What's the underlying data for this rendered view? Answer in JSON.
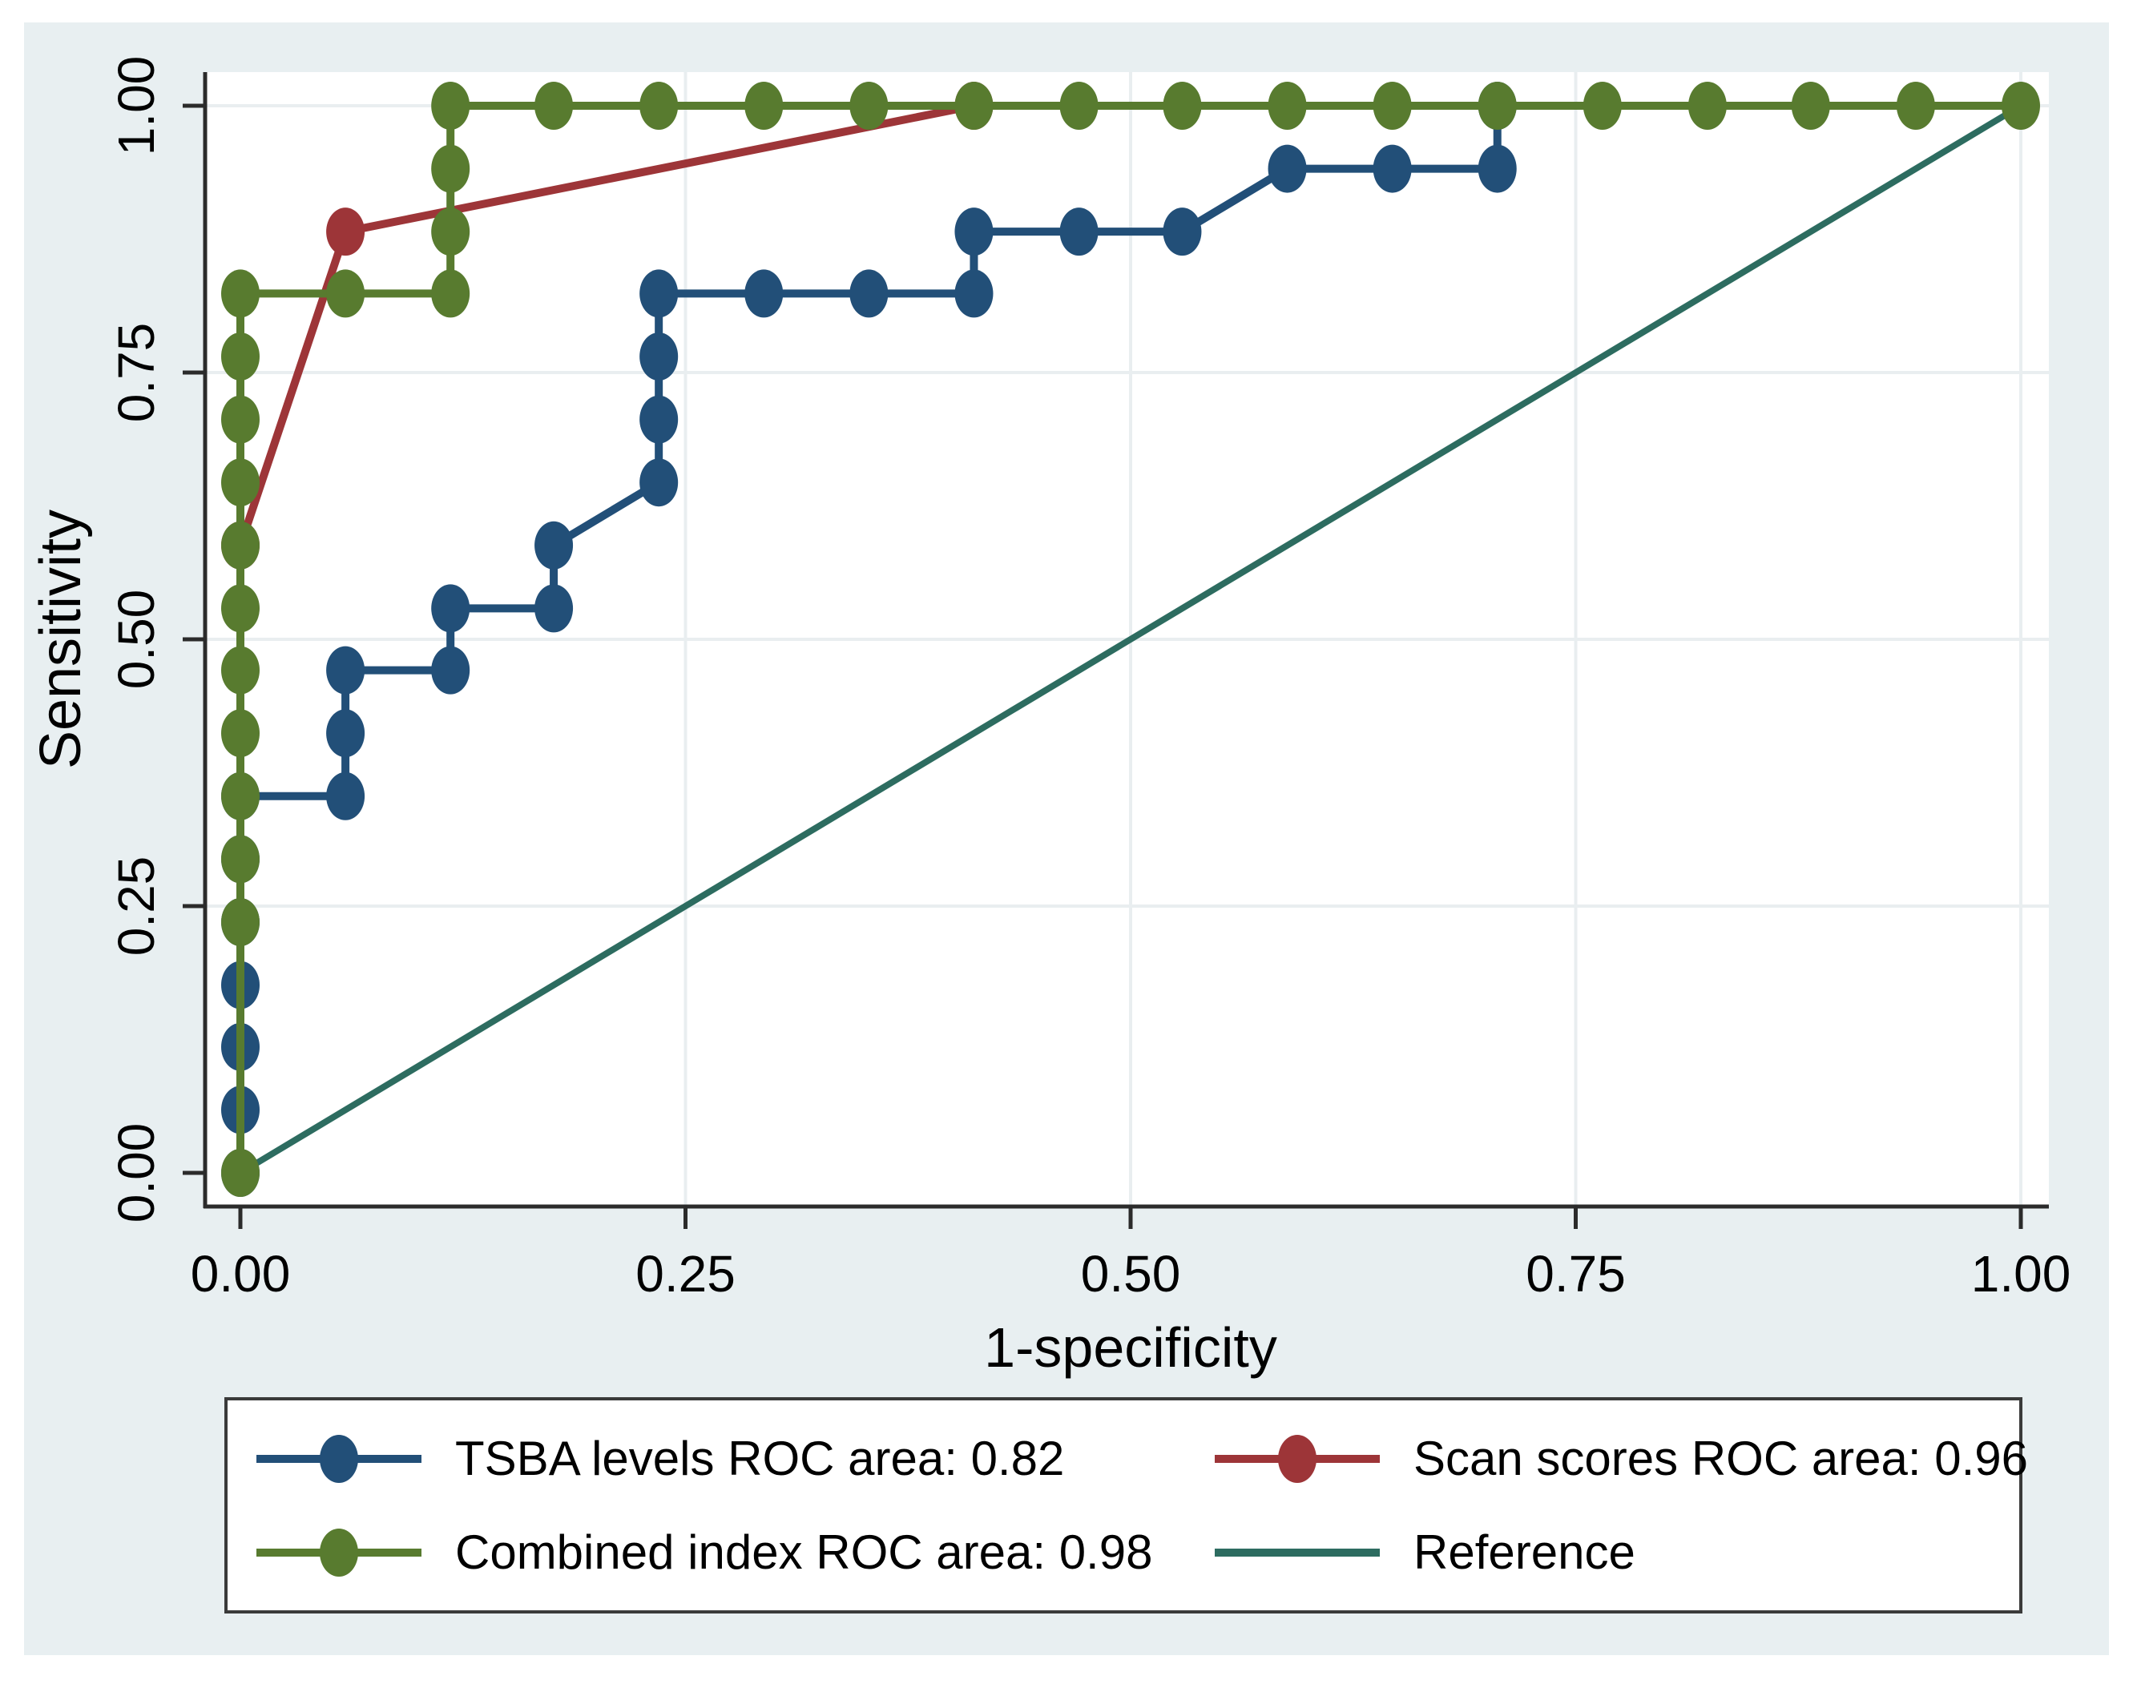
{
  "figure": {
    "background_color": "#e8eff1",
    "plot_background_color": "#ffffff",
    "grid_color": "#e9eef0",
    "axis_color": "#2b2b2b",
    "text_color": "#000000",
    "legend_border_color": "#3a3a3a"
  },
  "chart_data": {
    "type": "line",
    "subtype": "roc-step-curves",
    "title": "",
    "xlabel": "1-specificity",
    "ylabel": "Sensitivity",
    "xlim": [
      0,
      1
    ],
    "ylim": [
      0,
      1
    ],
    "grid": true,
    "x_ticks": {
      "values": [
        0,
        0.25,
        0.5,
        0.75,
        1
      ],
      "labels": [
        "0.00",
        "0.25",
        "0.50",
        "0.75",
        "1.00"
      ]
    },
    "y_ticks": {
      "values": [
        0,
        0.25,
        0.5,
        0.75,
        1
      ],
      "labels": [
        "0.00",
        "0.25",
        "0.50",
        "0.75",
        "1.00"
      ]
    },
    "series": [
      {
        "name": "Reference",
        "roc_area": null,
        "color": "#2d6c60",
        "line_width": 8,
        "points": [
          [
            0,
            0
          ],
          [
            1,
            1
          ]
        ],
        "marker_points": []
      },
      {
        "name": "TSBA levels",
        "roc_area": 0.82,
        "color": "#224f78",
        "line_width": 10,
        "points": [
          [
            0,
            0
          ],
          [
            0,
            0.059
          ],
          [
            0,
            0.118
          ],
          [
            0,
            0.176
          ],
          [
            0,
            0.235
          ],
          [
            0,
            0.294
          ],
          [
            0,
            0.353
          ],
          [
            0.059,
            0.353
          ],
          [
            0.059,
            0.412
          ],
          [
            0.059,
            0.471
          ],
          [
            0.118,
            0.471
          ],
          [
            0.118,
            0.529
          ],
          [
            0.176,
            0.529
          ],
          [
            0.176,
            0.588
          ],
          [
            0.235,
            0.647
          ],
          [
            0.235,
            0.706
          ],
          [
            0.235,
            0.765
          ],
          [
            0.235,
            0.824
          ],
          [
            0.294,
            0.824
          ],
          [
            0.353,
            0.824
          ],
          [
            0.412,
            0.824
          ],
          [
            0.412,
            0.882
          ],
          [
            0.471,
            0.882
          ],
          [
            0.529,
            0.882
          ],
          [
            0.588,
            0.941
          ],
          [
            0.647,
            0.941
          ],
          [
            0.706,
            0.941
          ],
          [
            0.706,
            1
          ],
          [
            1,
            1
          ]
        ],
        "marker_points": [
          [
            0,
            0
          ],
          [
            0,
            0.059
          ],
          [
            0,
            0.118
          ],
          [
            0,
            0.176
          ],
          [
            0,
            0.235
          ],
          [
            0,
            0.294
          ],
          [
            0,
            0.353
          ],
          [
            0.059,
            0.353
          ],
          [
            0.059,
            0.412
          ],
          [
            0.059,
            0.471
          ],
          [
            0.118,
            0.471
          ],
          [
            0.118,
            0.529
          ],
          [
            0.176,
            0.529
          ],
          [
            0.176,
            0.588
          ],
          [
            0.235,
            0.647
          ],
          [
            0.235,
            0.706
          ],
          [
            0.235,
            0.765
          ],
          [
            0.235,
            0.824
          ],
          [
            0.294,
            0.824
          ],
          [
            0.353,
            0.824
          ],
          [
            0.412,
            0.824
          ],
          [
            0.412,
            0.882
          ],
          [
            0.471,
            0.882
          ],
          [
            0.529,
            0.882
          ],
          [
            0.588,
            0.941
          ],
          [
            0.647,
            0.941
          ],
          [
            0.706,
            0.941
          ],
          [
            0.706,
            1
          ]
        ]
      },
      {
        "name": "Scan scores",
        "roc_area": 0.96,
        "color": "#9d3538",
        "line_width": 10,
        "points": [
          [
            0,
            0
          ],
          [
            0,
            0.588
          ],
          [
            0.059,
            0.882
          ],
          [
            0.412,
            1
          ],
          [
            1,
            1
          ]
        ],
        "marker_points": [
          [
            0,
            0.588
          ],
          [
            0.059,
            0.882
          ],
          [
            0.412,
            1
          ]
        ]
      },
      {
        "name": "Combined index",
        "roc_area": 0.98,
        "color": "#587b2f",
        "line_width": 10,
        "points": [
          [
            0,
            0
          ],
          [
            0,
            0.235
          ],
          [
            0,
            0.294
          ],
          [
            0,
            0.353
          ],
          [
            0,
            0.412
          ],
          [
            0,
            0.471
          ],
          [
            0,
            0.529
          ],
          [
            0,
            0.588
          ],
          [
            0,
            0.647
          ],
          [
            0,
            0.706
          ],
          [
            0,
            0.765
          ],
          [
            0,
            0.824
          ],
          [
            0.059,
            0.824
          ],
          [
            0.118,
            0.824
          ],
          [
            0.118,
            0.882
          ],
          [
            0.118,
            0.941
          ],
          [
            0.118,
            1
          ],
          [
            0.176,
            1
          ],
          [
            0.235,
            1
          ],
          [
            0.294,
            1
          ],
          [
            0.353,
            1
          ],
          [
            0.412,
            1
          ],
          [
            0.471,
            1
          ],
          [
            0.529,
            1
          ],
          [
            0.588,
            1
          ],
          [
            0.647,
            1
          ],
          [
            0.706,
            1
          ],
          [
            0.765,
            1
          ],
          [
            0.824,
            1
          ],
          [
            0.882,
            1
          ],
          [
            0.941,
            1
          ],
          [
            1,
            1
          ]
        ],
        "marker_points": [
          [
            0,
            0
          ],
          [
            0,
            0.235
          ],
          [
            0,
            0.294
          ],
          [
            0,
            0.353
          ],
          [
            0,
            0.412
          ],
          [
            0,
            0.471
          ],
          [
            0,
            0.529
          ],
          [
            0,
            0.588
          ],
          [
            0,
            0.647
          ],
          [
            0,
            0.706
          ],
          [
            0,
            0.765
          ],
          [
            0,
            0.824
          ],
          [
            0.059,
            0.824
          ],
          [
            0.118,
            0.824
          ],
          [
            0.118,
            0.882
          ],
          [
            0.118,
            0.941
          ],
          [
            0.118,
            1
          ],
          [
            0.176,
            1
          ],
          [
            0.235,
            1
          ],
          [
            0.294,
            1
          ],
          [
            0.353,
            1
          ],
          [
            0.412,
            1
          ],
          [
            0.471,
            1
          ],
          [
            0.529,
            1
          ],
          [
            0.588,
            1
          ],
          [
            0.647,
            1
          ],
          [
            0.706,
            1
          ],
          [
            0.765,
            1
          ],
          [
            0.824,
            1
          ],
          [
            0.882,
            1
          ],
          [
            0.941,
            1
          ],
          [
            1,
            1
          ]
        ]
      }
    ],
    "legend": {
      "position": "bottom",
      "items": [
        {
          "label": "TSBA levels ROC area: 0.82",
          "color": "#224f78",
          "marker": true
        },
        {
          "label": "Scan scores ROC area: 0.96",
          "color": "#9d3538",
          "marker": true
        },
        {
          "label": "Combined index ROC area: 0.98",
          "color": "#587b2f",
          "marker": true
        },
        {
          "label": "Reference",
          "color": "#2d6c60",
          "marker": false
        }
      ]
    }
  }
}
